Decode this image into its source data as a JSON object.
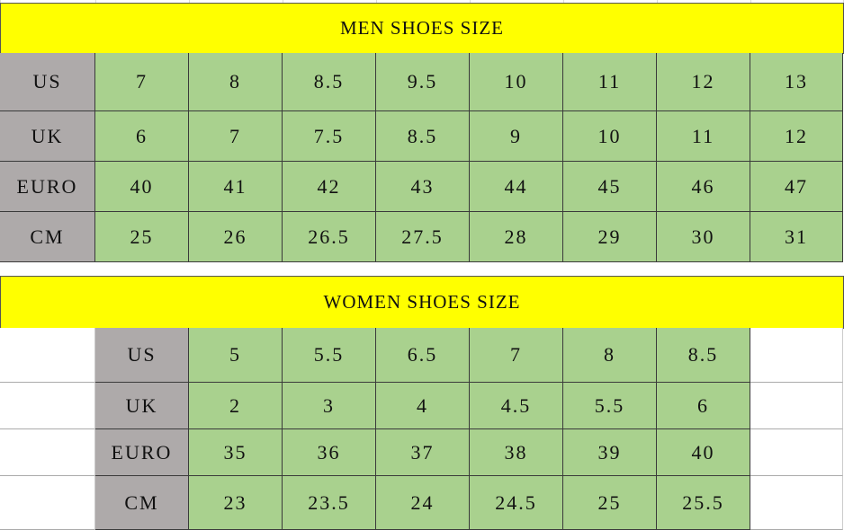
{
  "men": {
    "title": "MEN SHOES SIZE",
    "rows": [
      {
        "label": "US",
        "values": [
          "7",
          "8",
          "8.5",
          "9.5",
          "10",
          "11",
          "12",
          "13"
        ]
      },
      {
        "label": "UK",
        "values": [
          "6",
          "7",
          "7.5",
          "8.5",
          "9",
          "10",
          "11",
          "12"
        ]
      },
      {
        "label": "EURO",
        "values": [
          "40",
          "41",
          "42",
          "43",
          "44",
          "45",
          "46",
          "47"
        ]
      },
      {
        "label": "CM",
        "values": [
          "25",
          "26",
          "26.5",
          "27.5",
          "28",
          "29",
          "30",
          "31"
        ]
      }
    ]
  },
  "women": {
    "title": "WOMEN SHOES SIZE",
    "rows": [
      {
        "label": "US",
        "values": [
          "5",
          "5.5",
          "6.5",
          "7",
          "8",
          "8.5"
        ]
      },
      {
        "label": "UK",
        "values": [
          "2",
          "3",
          "4",
          "4.5",
          "5.5",
          "6"
        ]
      },
      {
        "label": "EURO",
        "values": [
          "35",
          "36",
          "37",
          "38",
          "39",
          "40"
        ]
      },
      {
        "label": "CM",
        "values": [
          "23",
          "23.5",
          "24",
          "24.5",
          "25",
          "25.5"
        ]
      }
    ]
  },
  "colors": {
    "header": "#ffff00",
    "label_cell": "#aeaaaa",
    "value_cell": "#a9d18e"
  }
}
